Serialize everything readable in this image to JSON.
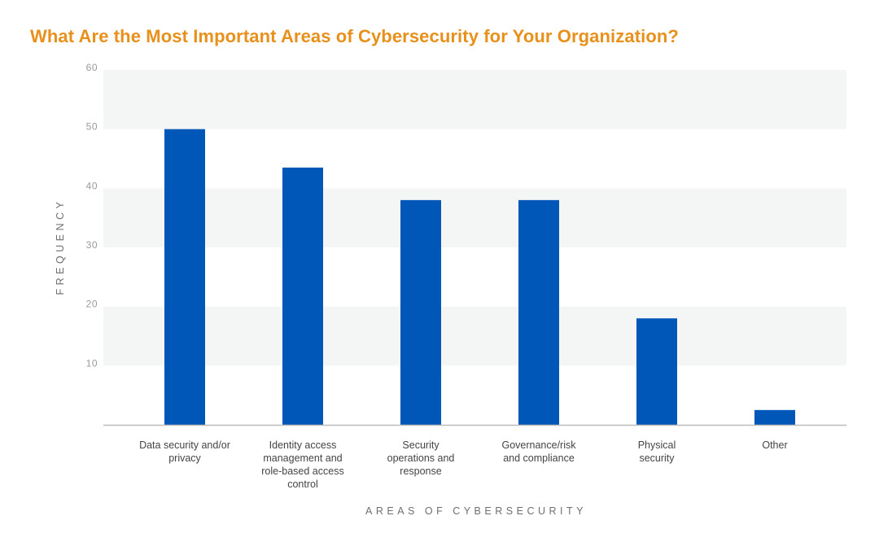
{
  "chart_data": {
    "type": "bar",
    "title": "What Are the Most Important Areas of Cybersecurity for Your Organization?",
    "xlabel": "AREAS OF CYBERSECURITY",
    "ylabel": "FREQUENCY",
    "ylim": [
      0,
      60
    ],
    "yticks": [
      "60",
      "50",
      "40",
      "30",
      "20",
      "10"
    ],
    "categories": [
      [
        "Data security and/or",
        "privacy"
      ],
      [
        "Identity access",
        "management and",
        "role-based access",
        "control"
      ],
      [
        "Security",
        "operations and",
        "response"
      ],
      [
        "Governance/risk",
        "and compliance"
      ],
      [
        "Physical",
        "security"
      ],
      [
        "Other"
      ]
    ],
    "values": [
      50,
      43.5,
      38,
      38,
      18,
      2.5
    ],
    "grid": "alternating horizontal bands",
    "legend": "none"
  },
  "colors": {
    "title": "#E8901C",
    "bar": "#0057B8",
    "band": "#F4F6F6",
    "axis_line": "#bdbdbd"
  }
}
